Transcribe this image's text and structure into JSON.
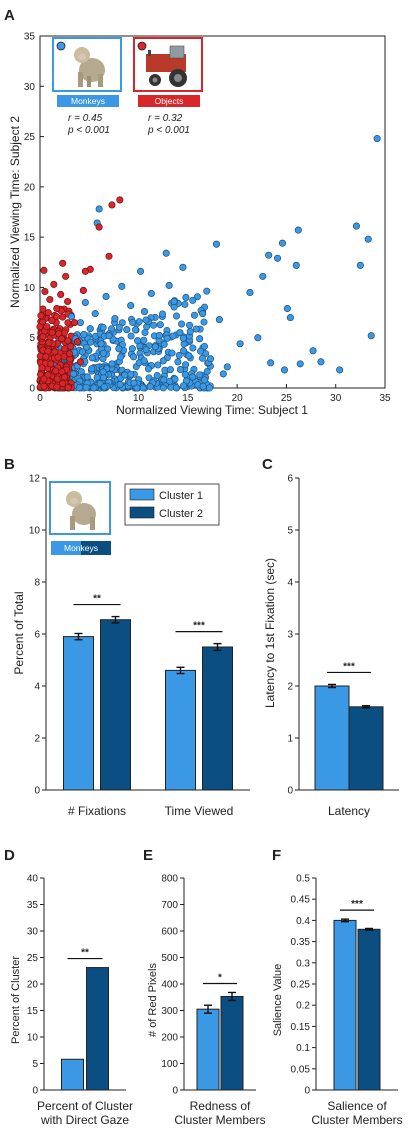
{
  "colors": {
    "monkeys": "#3a98e4",
    "objects": "#d8262a",
    "cluster1": "#3a98e4",
    "cluster2": "#0b4f82",
    "axis": "#222222"
  },
  "icons": [
    "monkey-photo-icon",
    "tractor-photo-icon"
  ],
  "panels": {
    "A": {
      "letter": "A",
      "legend_monkeys": "Monkeys",
      "legend_objects": "Objects",
      "monkeys_r": "r = 0.45",
      "monkeys_p": "p < 0.001",
      "objects_r": "r = 0.32",
      "objects_p": "p < 0.001"
    },
    "B": {
      "letter": "B",
      "legend_c1": "Cluster 1",
      "legend_c2": "Cluster 2",
      "badge": "Monkeys"
    },
    "C": {
      "letter": "C"
    },
    "D": {
      "letter": "D"
    },
    "E": {
      "letter": "E"
    },
    "F": {
      "letter": "F"
    }
  },
  "chart_data": [
    {
      "id": "A",
      "type": "scatter",
      "xlabel": "Normalized Viewing Time: Subject 1",
      "ylabel": "Normalized Viewing Time: Subject 2",
      "xlim": [
        0,
        35
      ],
      "ylim": [
        0,
        35
      ],
      "xticks": [
        "0",
        "5",
        "10",
        "15",
        "20",
        "25",
        "30",
        "35"
      ],
      "yticks": [
        "0",
        "5",
        "10",
        "15",
        "20",
        "25",
        "30",
        "35"
      ],
      "series": [
        {
          "name": "Monkeys",
          "color": "#3a98e4",
          "points": [
            [
              34.2,
              24.8
            ],
            [
              33.6,
              5.2
            ],
            [
              33.3,
              14.8
            ],
            [
              32.5,
              12.2
            ],
            [
              32.1,
              16.1
            ],
            [
              30.4,
              1.8
            ],
            [
              28.5,
              2.6
            ],
            [
              27.7,
              3.7
            ],
            [
              26.2,
              15.7
            ],
            [
              26.4,
              2.4
            ],
            [
              26.0,
              12.2
            ],
            [
              25.4,
              7.0
            ],
            [
              25.1,
              7.9
            ],
            [
              24.8,
              1.8
            ],
            [
              24.6,
              14.4
            ],
            [
              24.1,
              12.9
            ],
            [
              23.2,
              13.2
            ],
            [
              23.4,
              2.5
            ],
            [
              22.6,
              11.1
            ],
            [
              22.1,
              5.0
            ],
            [
              21.3,
              9.5
            ],
            [
              20.3,
              4.4
            ],
            [
              19.0,
              2.1
            ],
            [
              18.6,
              1.4
            ],
            [
              18.2,
              6.8
            ],
            [
              17.9,
              14.3
            ],
            [
              17.3,
              2.9
            ],
            [
              16.5,
              7.4
            ],
            [
              16.2,
              4.9
            ],
            [
              15.5,
              1.1
            ],
            [
              15.1,
              3.2
            ],
            [
              14.8,
              9.0
            ],
            [
              14.5,
              12.0
            ],
            [
              14.2,
              5.5
            ],
            [
              13.6,
              8.6
            ],
            [
              13.1,
              10.2
            ],
            [
              12.8,
              13.4
            ],
            [
              12.5,
              2.7
            ],
            [
              12.2,
              6.3
            ],
            [
              11.7,
              4.1
            ],
            [
              11.3,
              9.4
            ],
            [
              11.0,
              1.9
            ],
            [
              10.6,
              7.6
            ],
            [
              10.2,
              11.6
            ],
            [
              9.9,
              4.7
            ],
            [
              9.5,
              3.1
            ],
            [
              9.2,
              8.2
            ],
            [
              8.8,
              5.8
            ],
            [
              8.6,
              1.3
            ],
            [
              8.3,
              10.1
            ],
            [
              8.0,
              3.9
            ],
            [
              7.6,
              6.9
            ],
            [
              7.3,
              2.4
            ],
            [
              7.0,
              5.2
            ],
            [
              6.7,
              9.1
            ],
            [
              6.4,
              1.6
            ],
            [
              6.2,
              4.4
            ],
            [
              6.0,
              17.8
            ],
            [
              5.8,
              16.4
            ],
            [
              5.6,
              7.4
            ],
            [
              5.3,
              3.0
            ],
            [
              5.1,
              5.9
            ],
            [
              4.8,
              1.1
            ],
            [
              4.6,
              8.5
            ],
            [
              4.3,
              3.6
            ],
            [
              4.1,
              6.5
            ],
            [
              3.8,
              2.2
            ],
            [
              3.6,
              4.9
            ],
            [
              3.4,
              1.4
            ],
            [
              3.2,
              7.1
            ]
          ]
        },
        {
          "name": "Objects",
          "color": "#d8262a",
          "points": [
            [
              8.1,
              18.7
            ],
            [
              7.3,
              18.2
            ],
            [
              7.0,
              13.1
            ],
            [
              6.0,
              16.0
            ],
            [
              5.1,
              11.8
            ],
            [
              4.6,
              11.6
            ],
            [
              4.4,
              9.7
            ],
            [
              3.5,
              6.5
            ],
            [
              2.8,
              8.6
            ],
            [
              2.6,
              11.1
            ],
            [
              2.3,
              12.4
            ],
            [
              2.1,
              9.3
            ],
            [
              1.9,
              5.4
            ],
            [
              1.7,
              7.9
            ],
            [
              1.5,
              3.6
            ],
            [
              1.4,
              10.3
            ],
            [
              1.2,
              6.7
            ],
            [
              1.1,
              2.4
            ],
            [
              1.0,
              8.8
            ],
            [
              0.9,
              4.5
            ],
            [
              0.8,
              1.3
            ],
            [
              0.7,
              6.1
            ],
            [
              0.6,
              3.1
            ],
            [
              0.5,
              9.6
            ],
            [
              0.4,
              0.9
            ],
            [
              0.3,
              5.1
            ],
            [
              0.2,
              2.0
            ],
            [
              0.1,
              7.2
            ],
            [
              2.5,
              1.1
            ],
            [
              3.0,
              3.4
            ],
            [
              3.8,
              4.6
            ],
            [
              4.1,
              2.6
            ],
            [
              2.2,
              4.9
            ],
            [
              1.6,
              1.7
            ],
            [
              0.4,
              11.7
            ]
          ]
        }
      ]
    },
    {
      "id": "B",
      "type": "bar",
      "categories": [
        "# Fixations",
        "Time Viewed"
      ],
      "ylabel": "Percent of Total",
      "ylim": [
        0,
        12
      ],
      "yticks": [
        "0",
        "2",
        "4",
        "6",
        "8",
        "10",
        "12"
      ],
      "series": [
        {
          "name": "Cluster 1",
          "values": [
            5.9,
            4.6
          ],
          "errors": [
            0.12,
            0.12
          ]
        },
        {
          "name": "Cluster 2",
          "values": [
            6.55,
            5.5
          ],
          "errors": [
            0.12,
            0.13
          ]
        }
      ],
      "significance": [
        "**",
        "***"
      ]
    },
    {
      "id": "C",
      "type": "bar",
      "categories": [
        "Latency"
      ],
      "ylabel": "Latency to 1st Fixation (sec)",
      "ylim": [
        0,
        6
      ],
      "yticks": [
        "0",
        "1",
        "2",
        "3",
        "4",
        "5",
        "6"
      ],
      "series": [
        {
          "name": "Cluster 1",
          "values": [
            2.0
          ],
          "errors": [
            0.03
          ]
        },
        {
          "name": "Cluster 2",
          "values": [
            1.6
          ],
          "errors": [
            0.02
          ]
        }
      ],
      "significance": [
        "***"
      ]
    },
    {
      "id": "D",
      "type": "bar",
      "categories": [
        "Percent of Cluster with Direct Gaze"
      ],
      "category_lines": [
        "Percent of Cluster",
        "with Direct Gaze"
      ],
      "ylabel": "Percent of Cluster",
      "ylim": [
        0,
        40
      ],
      "yticks": [
        "0",
        "5",
        "10",
        "15",
        "20",
        "25",
        "30",
        "35",
        "40"
      ],
      "series": [
        {
          "name": "Cluster 1",
          "values": [
            5.8
          ],
          "errors": [
            0
          ]
        },
        {
          "name": "Cluster 2",
          "values": [
            23.1
          ],
          "errors": [
            0
          ]
        }
      ],
      "significance": [
        "**"
      ]
    },
    {
      "id": "E",
      "type": "bar",
      "categories": [
        "Redness of Cluster Members"
      ],
      "category_lines": [
        "Redness of",
        "Cluster Members"
      ],
      "ylabel": "# of Red Pixels",
      "ylim": [
        0,
        800
      ],
      "yticks": [
        "0",
        "100",
        "200",
        "300",
        "400",
        "500",
        "600",
        "700",
        "800"
      ],
      "series": [
        {
          "name": "Cluster 1",
          "values": [
            305
          ],
          "errors": [
            15
          ]
        },
        {
          "name": "Cluster 2",
          "values": [
            353
          ],
          "errors": [
            15
          ]
        }
      ],
      "significance": [
        "*"
      ]
    },
    {
      "id": "F",
      "type": "bar",
      "categories": [
        "Salience of Cluster Members"
      ],
      "category_lines": [
        "Salience of",
        "Cluster Members"
      ],
      "ylabel": "Salience Value",
      "ylim": [
        0,
        0.5
      ],
      "yticks": [
        "0",
        "0.05",
        "0.1",
        "0.15",
        "0.2",
        "0.25",
        "0.3",
        "0.35",
        "0.4",
        "0.45",
        "0.5"
      ],
      "series": [
        {
          "name": "Cluster 1",
          "values": [
            0.4
          ],
          "errors": [
            0.003
          ]
        },
        {
          "name": "Cluster 2",
          "values": [
            0.379
          ],
          "errors": [
            0.002
          ]
        }
      ],
      "significance": [
        "***"
      ]
    }
  ]
}
